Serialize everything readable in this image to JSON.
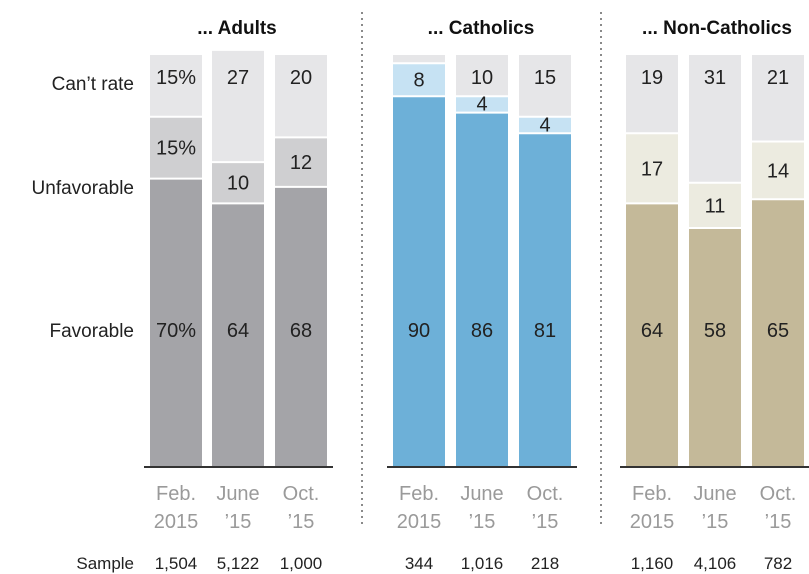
{
  "chart_data": {
    "type": "bar",
    "stacked": true,
    "row_labels": [
      "Can’t rate",
      "Unfavorable",
      "Favorable"
    ],
    "sample_label": "Sample",
    "ylim": [
      0,
      100
    ],
    "panels": [
      {
        "title": "... Adults",
        "colors": {
          "favorable": "#a4a4a8",
          "unfavorable": "#cfcfd1",
          "cant_rate": "#e6e6e8"
        },
        "categories": [
          [
            "Feb.",
            "2015"
          ],
          [
            "June",
            "’15"
          ],
          [
            "Oct.",
            "’15"
          ]
        ],
        "series": [
          {
            "name": "Favorable",
            "values": [
              70,
              64,
              68
            ],
            "labels": [
              "70%",
              "64",
              "68"
            ]
          },
          {
            "name": "Unfavorable",
            "values": [
              15,
              10,
              12
            ],
            "labels": [
              "15%",
              "10",
              "12"
            ]
          },
          {
            "name": "Can’t rate",
            "values": [
              15,
              27,
              20
            ],
            "labels": [
              "15%",
              "27",
              "20"
            ]
          }
        ],
        "samples": [
          "1,504",
          "5,122",
          "1,000"
        ]
      },
      {
        "title": "... Catholics",
        "colors": {
          "favorable": "#6db0d8",
          "unfavorable": "#c6e2f3",
          "cant_rate": "#e6e6e8"
        },
        "categories": [
          [
            "Feb.",
            "2015"
          ],
          [
            "June",
            "’15"
          ],
          [
            "Oct.",
            "’15"
          ]
        ],
        "series": [
          {
            "name": "Favorable",
            "values": [
              90,
              86,
              81
            ],
            "labels": [
              "90",
              "86",
              "81"
            ]
          },
          {
            "name": "Unfavorable",
            "values": [
              8,
              4,
              4
            ],
            "labels": [
              "8",
              "4",
              "4"
            ]
          },
          {
            "name": "Can’t rate",
            "values": [
              2,
              10,
              15
            ],
            "labels": [
              "",
              "10",
              "15"
            ]
          }
        ],
        "samples": [
          "344",
          "1,016",
          "218"
        ]
      },
      {
        "title": "... Non-Catholics",
        "colors": {
          "favorable": "#c4b999",
          "unfavorable": "#ecebe0",
          "cant_rate": "#e6e6e8"
        },
        "categories": [
          [
            "Feb.",
            "2015"
          ],
          [
            "June",
            "’15"
          ],
          [
            "Oct.",
            "’15"
          ]
        ],
        "series": [
          {
            "name": "Favorable",
            "values": [
              64,
              58,
              65
            ],
            "labels": [
              "64",
              "58",
              "65"
            ]
          },
          {
            "name": "Unfavorable",
            "values": [
              17,
              11,
              14
            ],
            "labels": [
              "17",
              "11",
              "14"
            ]
          },
          {
            "name": "Can’t rate",
            "values": [
              19,
              31,
              21
            ],
            "labels": [
              "19",
              "31",
              "21"
            ]
          }
        ],
        "samples": [
          "1,160",
          "4,106",
          "782"
        ]
      }
    ]
  }
}
